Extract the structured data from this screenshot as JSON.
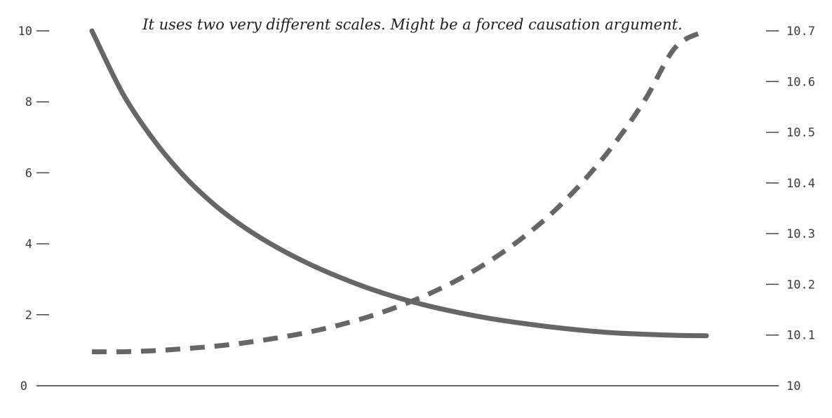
{
  "chart_data": {
    "type": "line",
    "title": "It uses two very different scales. Might be a forced causation argument.",
    "xlabel": "",
    "ylabel_left": "",
    "ylabel_right": "",
    "left_axis": {
      "ylim": [
        0,
        10
      ],
      "ticks": [
        0,
        2,
        4,
        6,
        8,
        10
      ],
      "tick_labels": [
        "0",
        "2",
        "4",
        "6",
        "8",
        "10"
      ]
    },
    "right_axis": {
      "ylim": [
        10,
        10.7
      ],
      "ticks": [
        10,
        10.1,
        10.2,
        10.3,
        10.4,
        10.5,
        10.6,
        10.7
      ],
      "tick_labels": [
        "10",
        "10.1",
        "10.2",
        "10.3",
        "10.4",
        "10.5",
        "10.6",
        "10.7"
      ]
    },
    "grid": false,
    "legend": "none",
    "series": [
      {
        "axis": "left",
        "style": "solid",
        "color": "#666666",
        "x": [
          0,
          0.05,
          0.1,
          0.15,
          0.2,
          0.25,
          0.3,
          0.35,
          0.4,
          0.45,
          0.5,
          0.55,
          0.6,
          0.65,
          0.7,
          0.75,
          0.8,
          0.85,
          0.9,
          0.95,
          1
        ],
        "values": [
          10.0,
          8.24,
          6.94,
          5.91,
          5.09,
          4.44,
          3.91,
          3.46,
          3.08,
          2.75,
          2.47,
          2.24,
          2.05,
          1.89,
          1.76,
          1.65,
          1.56,
          1.49,
          1.45,
          1.42,
          1.41
        ]
      },
      {
        "axis": "right",
        "style": "dashed",
        "color": "#666666",
        "x": [
          0,
          0.05,
          0.1,
          0.15,
          0.2,
          0.25,
          0.3,
          0.35,
          0.4,
          0.45,
          0.5,
          0.55,
          0.6,
          0.65,
          0.7,
          0.75,
          0.8,
          0.85,
          0.9,
          0.95,
          1
        ],
        "values": [
          10.067,
          10.067,
          10.069,
          10.073,
          10.078,
          10.085,
          10.094,
          10.105,
          10.119,
          10.136,
          10.157,
          10.182,
          10.212,
          10.248,
          10.291,
          10.342,
          10.404,
          10.477,
          10.564,
          10.668,
          10.7
        ]
      }
    ]
  }
}
